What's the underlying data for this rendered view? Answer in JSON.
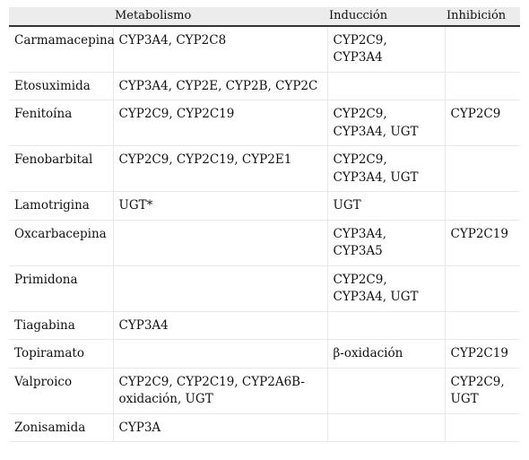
{
  "table": {
    "headers": [
      "",
      "Metabolismo",
      "Inducción",
      "Inhibición"
    ],
    "rows": [
      {
        "drug": "Carmamacepina",
        "metabolism": "CYP3A4, CYP2C8",
        "induction": "CYP2C9, CYP3A4",
        "inhibition": ""
      },
      {
        "drug": "Etosuximida",
        "metabolism": "CYP3A4, CYP2E, CYP2B, CYP2C",
        "induction": "",
        "inhibition": ""
      },
      {
        "drug": "Fenitoína",
        "metabolism": "CYP2C9, CYP2C19",
        "induction": "CYP2C9, CYP3A4, UGT",
        "inhibition": "CYP2C9"
      },
      {
        "drug": "Fenobarbital",
        "metabolism": "CYP2C9, CYP2C19, CYP2E1",
        "induction": "CYP2C9, CYP3A4, UGT",
        "inhibition": ""
      },
      {
        "drug": "Lamotrigina",
        "metabolism": "UGT*",
        "induction": "UGT",
        "inhibition": ""
      },
      {
        "drug": "Oxcarbacepina",
        "metabolism": "",
        "induction": "CYP3A4, CYP3A5",
        "inhibition": "CYP2C19"
      },
      {
        "drug": "Primidona",
        "metabolism": "",
        "induction": "CYP2C9, CYP3A4, UGT",
        "inhibition": ""
      },
      {
        "drug": "Tiagabina",
        "metabolism": "CYP3A4",
        "induction": "",
        "inhibition": ""
      },
      {
        "drug": "Topiramato",
        "metabolism": "",
        "induction": "β-oxidación",
        "inhibition": "CYP2C19"
      },
      {
        "drug": "Valproico",
        "metabolism": "CYP2C9, CYP2C19, CYP2A6B-oxidación, UGT",
        "induction": "",
        "inhibition": "CYP2C9, UGT"
      },
      {
        "drug": "Zonisamida",
        "metabolism": "CYP3A",
        "induction": "",
        "inhibition": ""
      }
    ]
  }
}
